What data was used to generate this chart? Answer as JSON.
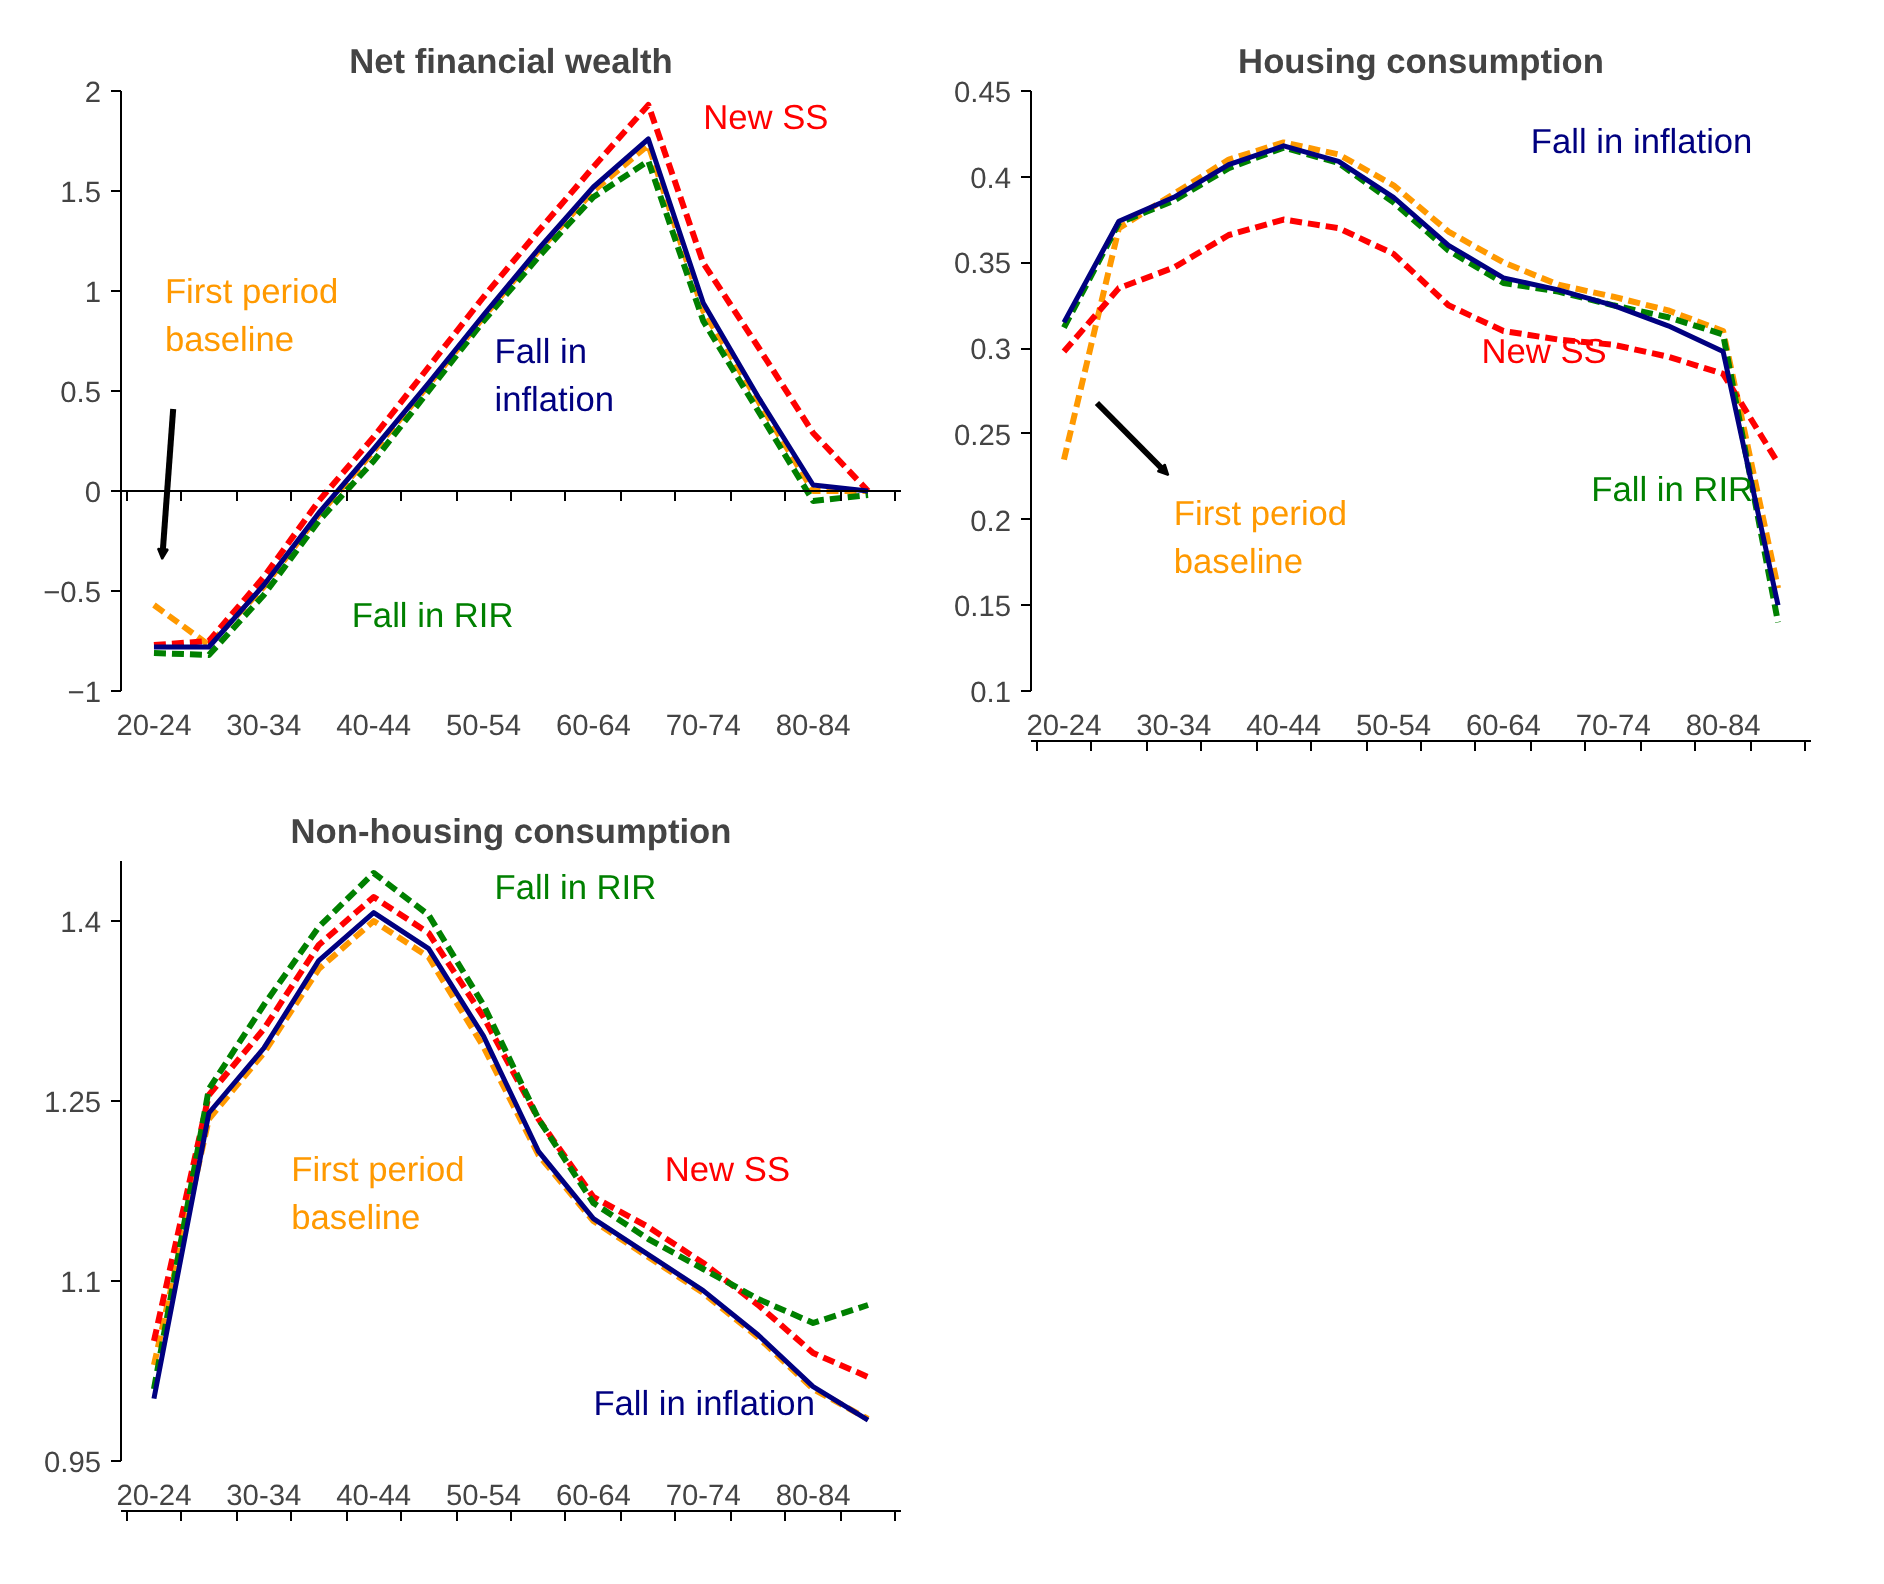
{
  "chart_data": [
    {
      "type": "line",
      "title": "Net financial wealth",
      "categories": [
        "20-24",
        null,
        "30-34",
        null,
        "40-44",
        null,
        "50-54",
        null,
        "60-64",
        null,
        "70-74",
        null,
        "80-84",
        null
      ],
      "ylim": [
        -1,
        2
      ],
      "yticks": [
        -1,
        -0.5,
        0,
        0.5,
        1,
        1.5,
        2
      ],
      "grid": false,
      "ref_lines": [
        {
          "axis": "y",
          "value": 0,
          "color": "#000000"
        }
      ],
      "series": [
        {
          "name": "First period baseline",
          "color": "#ff9900",
          "line_style": "dashed",
          "values": [
            -0.57,
            -0.77,
            -0.48,
            -0.12,
            0.2,
            0.53,
            0.87,
            1.2,
            1.5,
            1.73,
            0.9,
            0.45,
            0.0,
            0.0
          ]
        },
        {
          "name": "New SS",
          "color": "#ff0000",
          "line_style": "dashed",
          "values": [
            -0.77,
            -0.75,
            -0.43,
            -0.05,
            0.27,
            0.62,
            0.97,
            1.3,
            1.62,
            1.93,
            1.14,
            0.72,
            0.29,
            0.0
          ]
        },
        {
          "name": "Fall in RIR",
          "color": "#008000",
          "line_style": "dashed",
          "values": [
            -0.81,
            -0.82,
            -0.52,
            -0.15,
            0.15,
            0.5,
            0.85,
            1.17,
            1.47,
            1.65,
            0.85,
            0.4,
            -0.05,
            -0.02
          ]
        },
        {
          "name": "Fall in inflation",
          "color": "#000080",
          "line_style": "solid",
          "values": [
            -0.78,
            -0.78,
            -0.47,
            -0.11,
            0.21,
            0.54,
            0.88,
            1.21,
            1.52,
            1.76,
            0.94,
            0.47,
            0.03,
            0.0
          ]
        }
      ]
    },
    {
      "type": "line",
      "title": "Housing consumption",
      "categories": [
        "20-24",
        null,
        "30-34",
        null,
        "40-44",
        null,
        "50-54",
        null,
        "60-64",
        null,
        "70-74",
        null,
        "80-84",
        null
      ],
      "ylim": [
        0.1,
        0.45
      ],
      "yticks": [
        0.1,
        0.15,
        0.2,
        0.25,
        0.3,
        0.35,
        0.4,
        0.45
      ],
      "grid": false,
      "series": [
        {
          "name": "First period baseline",
          "color": "#ff9900",
          "line_style": "dashed",
          "values": [
            0.235,
            0.37,
            0.39,
            0.41,
            0.42,
            0.413,
            0.395,
            0.368,
            0.35,
            0.337,
            0.33,
            0.322,
            0.31,
            0.16
          ]
        },
        {
          "name": "New SS",
          "color": "#ff0000",
          "line_style": "dashed",
          "values": [
            0.298,
            0.335,
            0.347,
            0.366,
            0.375,
            0.37,
            0.355,
            0.325,
            0.31,
            0.305,
            0.302,
            0.295,
            0.285,
            0.233
          ]
        },
        {
          "name": "Fall in RIR",
          "color": "#008000",
          "line_style": "dashed",
          "values": [
            0.312,
            0.373,
            0.386,
            0.405,
            0.417,
            0.408,
            0.385,
            0.357,
            0.338,
            0.333,
            0.325,
            0.318,
            0.308,
            0.14
          ]
        },
        {
          "name": "Fall in inflation",
          "color": "#000080",
          "line_style": "solid",
          "values": [
            0.315,
            0.374,
            0.388,
            0.407,
            0.418,
            0.409,
            0.388,
            0.36,
            0.341,
            0.334,
            0.325,
            0.313,
            0.298,
            0.15
          ]
        }
      ]
    },
    {
      "type": "line",
      "title": "Non-housing consumption",
      "categories": [
        "20-24",
        null,
        "30-34",
        null,
        "40-44",
        null,
        "50-54",
        null,
        "60-64",
        null,
        "70-74",
        null,
        "80-84",
        null
      ],
      "ylim": [
        0.95,
        1.45
      ],
      "yticks": [
        0.95,
        1.1,
        1.25,
        1.4
      ],
      "grid": false,
      "series": [
        {
          "name": "First period baseline",
          "color": "#ff9900",
          "line_style": "dashed",
          "values": [
            1.03,
            1.235,
            1.29,
            1.36,
            1.4,
            1.37,
            1.295,
            1.205,
            1.15,
            1.12,
            1.09,
            1.053,
            1.01,
            0.985
          ]
        },
        {
          "name": "New SS",
          "color": "#ff0000",
          "line_style": "dashed",
          "values": [
            1.05,
            1.255,
            1.31,
            1.38,
            1.42,
            1.39,
            1.32,
            1.235,
            1.17,
            1.145,
            1.115,
            1.08,
            1.04,
            1.02
          ]
        },
        {
          "name": "Fall in RIR",
          "color": "#008000",
          "line_style": "dashed",
          "values": [
            1.01,
            1.26,
            1.33,
            1.395,
            1.44,
            1.405,
            1.33,
            1.235,
            1.165,
            1.135,
            1.11,
            1.085,
            1.065,
            1.08
          ]
        },
        {
          "name": "Fall in inflation",
          "color": "#000080",
          "line_style": "solid",
          "values": [
            1.002,
            1.24,
            1.294,
            1.367,
            1.407,
            1.377,
            1.304,
            1.208,
            1.152,
            1.122,
            1.092,
            1.055,
            1.012,
            0.984
          ]
        }
      ]
    }
  ]
}
